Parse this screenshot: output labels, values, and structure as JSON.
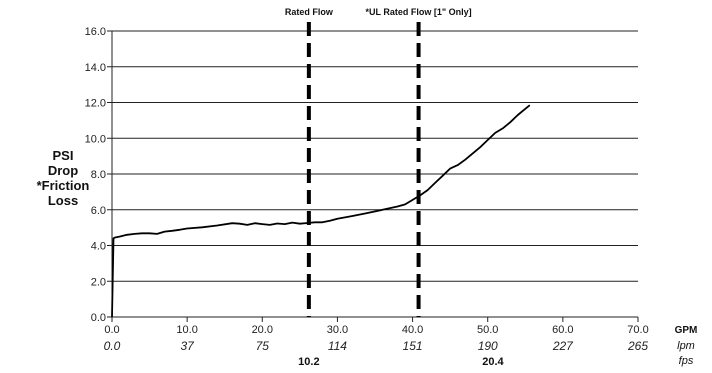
{
  "chart_data": {
    "type": "line",
    "ylabel": [
      "PSI",
      "Drop",
      "*Friction",
      "Loss"
    ],
    "xlim": [
      0,
      70
    ],
    "ylim": [
      0,
      16
    ],
    "x_ticks": [
      "0.0",
      "10.0",
      "20.0",
      "30.0",
      "40.0",
      "50.0",
      "60.0",
      "70.0"
    ],
    "y_ticks": [
      "0.0",
      "2.0",
      "4.0",
      "6.0",
      "8.0",
      "10.0",
      "12.0",
      "14.0",
      "16.0"
    ],
    "lpm_ticks": [
      "0.0",
      "37",
      "75",
      "114",
      "151",
      "190",
      "227",
      "265"
    ],
    "fps_labels": [
      {
        "x": 26.2,
        "text": "10.2"
      },
      {
        "x": 50.7,
        "text": "20.4"
      }
    ],
    "unit_labels": [
      "GPM",
      "lpm",
      "fps"
    ],
    "vlines": [
      {
        "x": 26.2,
        "label": "Rated Flow"
      },
      {
        "x": 40.8,
        "label": "*UL Rated Flow [1\" Only]"
      }
    ],
    "series": [
      {
        "x": [
          0,
          0.2,
          0.4,
          1,
          2,
          3,
          4,
          5,
          6,
          7,
          8,
          9,
          10,
          12,
          14,
          16,
          17,
          18,
          19,
          20,
          21,
          22,
          23,
          24,
          25,
          26,
          27,
          28,
          29,
          30,
          32,
          34,
          36,
          38,
          39,
          40,
          41,
          42,
          43,
          44,
          45,
          46,
          47,
          48,
          49,
          50,
          51,
          52,
          53,
          54,
          55,
          55.6
        ],
        "y": [
          0,
          4.4,
          4.45,
          4.5,
          4.6,
          4.65,
          4.68,
          4.68,
          4.65,
          4.78,
          4.82,
          4.88,
          4.95,
          5.02,
          5.12,
          5.25,
          5.22,
          5.15,
          5.25,
          5.2,
          5.15,
          5.23,
          5.2,
          5.28,
          5.22,
          5.26,
          5.3,
          5.3,
          5.38,
          5.5,
          5.65,
          5.82,
          6.0,
          6.18,
          6.3,
          6.55,
          6.8,
          7.1,
          7.5,
          7.9,
          8.3,
          8.5,
          8.8,
          9.15,
          9.5,
          9.9,
          10.3,
          10.55,
          10.9,
          11.3,
          11.65,
          11.85
        ]
      }
    ]
  }
}
